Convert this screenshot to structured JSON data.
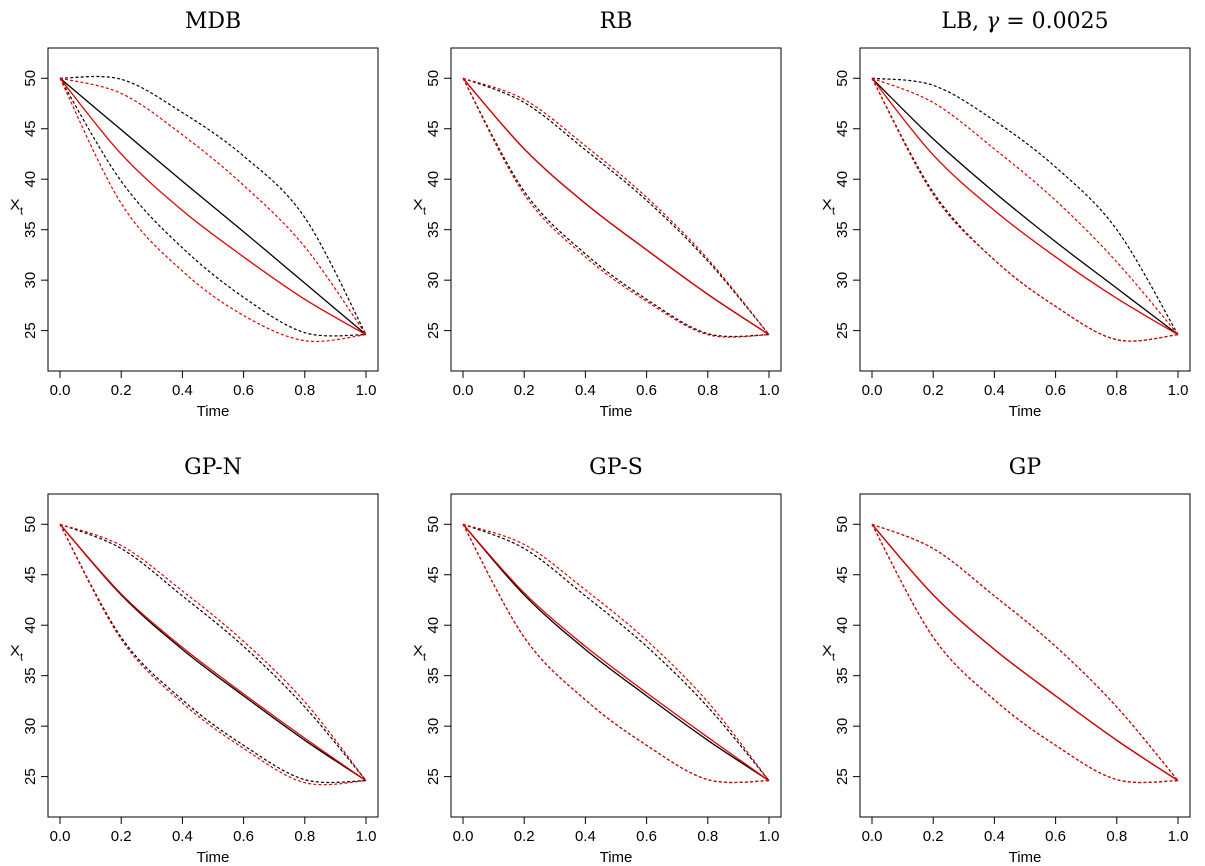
{
  "colors": {
    "reference": "#000000",
    "approximation": "#e00000"
  },
  "chart_data": [
    {
      "type": "line",
      "title": "MDB",
      "title_parts": [
        {
          "text": "MDB",
          "style": "normal"
        }
      ],
      "xlabel": "Time",
      "ylabel": "X",
      "ylabel_sub": "t",
      "xlim": [
        0,
        1
      ],
      "ylim": [
        21,
        53
      ],
      "xticks": [
        0.0,
        0.2,
        0.4,
        0.6,
        0.8,
        1.0
      ],
      "xtick_labels": [
        "0.0",
        "0.2",
        "0.4",
        "0.6",
        "0.8",
        "1.0"
      ],
      "yticks": [
        25,
        30,
        35,
        40,
        45,
        50
      ],
      "ytick_labels": [
        "25",
        "30",
        "35",
        "40",
        "45",
        "50"
      ],
      "x": [
        0.0,
        0.2,
        0.4,
        0.6,
        0.8,
        1.0
      ],
      "series": [
        {
          "color": "reference",
          "dash": "solid",
          "values": [
            50.0,
            44.9,
            39.8,
            34.8,
            29.7,
            24.6
          ]
        },
        {
          "color": "reference",
          "dash": "dotted",
          "values": [
            50.0,
            49.9,
            46.6,
            42.3,
            36.2,
            24.6
          ]
        },
        {
          "color": "reference",
          "dash": "dotted",
          "values": [
            50.0,
            39.8,
            33.2,
            28.3,
            24.8,
            24.6
          ]
        },
        {
          "color": "approximation",
          "dash": "solid",
          "values": [
            50.0,
            42.5,
            36.9,
            32.3,
            28.1,
            24.6
          ]
        },
        {
          "color": "approximation",
          "dash": "dotted",
          "values": [
            50.0,
            48.5,
            44.4,
            39.4,
            33.3,
            24.6
          ]
        },
        {
          "color": "approximation",
          "dash": "dotted",
          "values": [
            50.0,
            37.6,
            30.9,
            26.5,
            24.0,
            24.6
          ]
        }
      ]
    },
    {
      "type": "line",
      "title": "RB",
      "title_parts": [
        {
          "text": "RB",
          "style": "normal"
        }
      ],
      "xlabel": "Time",
      "ylabel": "X",
      "ylabel_sub": "t",
      "xlim": [
        0,
        1
      ],
      "ylim": [
        21,
        53
      ],
      "xticks": [
        0.0,
        0.2,
        0.4,
        0.6,
        0.8,
        1.0
      ],
      "xtick_labels": [
        "0.0",
        "0.2",
        "0.4",
        "0.6",
        "0.8",
        "1.0"
      ],
      "yticks": [
        25,
        30,
        35,
        40,
        45,
        50
      ],
      "ytick_labels": [
        "25",
        "30",
        "35",
        "40",
        "45",
        "50"
      ],
      "x": [
        0.0,
        0.2,
        0.4,
        0.6,
        0.8,
        1.0
      ],
      "series": [
        {
          "color": "reference",
          "dash": "solid",
          "values": [
            50.0,
            43.0,
            37.6,
            33.0,
            28.6,
            24.6
          ]
        },
        {
          "color": "reference",
          "dash": "dotted",
          "values": [
            50.0,
            47.6,
            42.9,
            37.9,
            31.9,
            24.6
          ]
        },
        {
          "color": "reference",
          "dash": "dotted",
          "values": [
            50.0,
            38.8,
            32.6,
            28.1,
            24.7,
            24.6
          ]
        },
        {
          "color": "approximation",
          "dash": "solid",
          "values": [
            50.0,
            43.0,
            37.6,
            33.0,
            28.6,
            24.6
          ]
        },
        {
          "color": "approximation",
          "dash": "dotted",
          "values": [
            50.0,
            47.9,
            43.3,
            38.2,
            32.1,
            24.6
          ]
        },
        {
          "color": "approximation",
          "dash": "dotted",
          "values": [
            50.0,
            38.5,
            32.3,
            27.9,
            24.6,
            24.6
          ]
        }
      ]
    },
    {
      "type": "line",
      "title": "LB, γ = 0.0025",
      "title_parts": [
        {
          "text": "LB, ",
          "style": "normal"
        },
        {
          "text": "γ",
          "style": "italic"
        },
        {
          "text": " = 0.0025",
          "style": "normal"
        }
      ],
      "xlabel": "Time",
      "ylabel": "X",
      "ylabel_sub": "t",
      "xlim": [
        0,
        1
      ],
      "ylim": [
        21,
        53
      ],
      "xticks": [
        0.0,
        0.2,
        0.4,
        0.6,
        0.8,
        1.0
      ],
      "xtick_labels": [
        "0.0",
        "0.2",
        "0.4",
        "0.6",
        "0.8",
        "1.0"
      ],
      "yticks": [
        25,
        30,
        35,
        40,
        45,
        50
      ],
      "ytick_labels": [
        "25",
        "30",
        "35",
        "40",
        "45",
        "50"
      ],
      "x": [
        0.0,
        0.2,
        0.4,
        0.6,
        0.8,
        1.0
      ],
      "series": [
        {
          "color": "reference",
          "dash": "solid",
          "values": [
            50.0,
            44.0,
            38.7,
            33.8,
            29.2,
            24.6
          ]
        },
        {
          "color": "reference",
          "dash": "dotted",
          "values": [
            50.0,
            49.3,
            45.8,
            41.2,
            35.0,
            24.6
          ]
        },
        {
          "color": "reference",
          "dash": "dotted",
          "values": [
            50.0,
            38.7,
            32.0,
            27.4,
            24.1,
            24.6
          ]
        },
        {
          "color": "approximation",
          "dash": "solid",
          "values": [
            50.0,
            42.4,
            36.9,
            32.3,
            28.2,
            24.6
          ]
        },
        {
          "color": "approximation",
          "dash": "dotted",
          "values": [
            50.0,
            47.6,
            43.0,
            37.9,
            31.8,
            24.6
          ]
        },
        {
          "color": "approximation",
          "dash": "dotted",
          "values": [
            50.0,
            38.5,
            32.0,
            27.4,
            24.1,
            24.6
          ]
        }
      ]
    },
    {
      "type": "line",
      "title": "GP-N",
      "title_parts": [
        {
          "text": "GP-N",
          "style": "normal"
        }
      ],
      "xlabel": "Time",
      "ylabel": "X",
      "ylabel_sub": "t",
      "xlim": [
        0,
        1
      ],
      "ylim": [
        21,
        53
      ],
      "xticks": [
        0.0,
        0.2,
        0.4,
        0.6,
        0.8,
        1.0
      ],
      "xtick_labels": [
        "0.0",
        "0.2",
        "0.4",
        "0.6",
        "0.8",
        "1.0"
      ],
      "yticks": [
        25,
        30,
        35,
        40,
        45,
        50
      ],
      "ytick_labels": [
        "25",
        "30",
        "35",
        "40",
        "45",
        "50"
      ],
      "x": [
        0.0,
        0.2,
        0.4,
        0.6,
        0.8,
        1.0
      ],
      "series": [
        {
          "color": "reference",
          "dash": "solid",
          "values": [
            50.0,
            43.0,
            37.6,
            33.0,
            28.6,
            24.6
          ]
        },
        {
          "color": "reference",
          "dash": "dotted",
          "values": [
            50.0,
            47.6,
            42.9,
            37.9,
            31.9,
            24.6
          ]
        },
        {
          "color": "reference",
          "dash": "dotted",
          "values": [
            50.0,
            38.8,
            32.6,
            28.1,
            24.7,
            24.6
          ]
        },
        {
          "color": "approximation",
          "dash": "solid",
          "values": [
            50.0,
            43.1,
            37.8,
            33.2,
            28.8,
            24.6
          ]
        },
        {
          "color": "approximation",
          "dash": "dotted",
          "values": [
            50.0,
            47.9,
            43.4,
            38.4,
            32.4,
            24.6
          ]
        },
        {
          "color": "approximation",
          "dash": "dotted",
          "values": [
            50.0,
            38.6,
            32.3,
            27.8,
            24.4,
            24.6
          ]
        }
      ]
    },
    {
      "type": "line",
      "title": "GP-S",
      "title_parts": [
        {
          "text": "GP-S",
          "style": "normal"
        }
      ],
      "xlabel": "Time",
      "ylabel": "X",
      "ylabel_sub": "t",
      "xlim": [
        0,
        1
      ],
      "ylim": [
        21,
        53
      ],
      "xticks": [
        0.0,
        0.2,
        0.4,
        0.6,
        0.8,
        1.0
      ],
      "xtick_labels": [
        "0.0",
        "0.2",
        "0.4",
        "0.6",
        "0.8",
        "1.0"
      ],
      "yticks": [
        25,
        30,
        35,
        40,
        45,
        50
      ],
      "ytick_labels": [
        "25",
        "30",
        "35",
        "40",
        "45",
        "50"
      ],
      "x": [
        0.0,
        0.2,
        0.4,
        0.6,
        0.8,
        1.0
      ],
      "series": [
        {
          "color": "reference",
          "dash": "solid",
          "values": [
            50.0,
            43.0,
            37.6,
            33.0,
            28.6,
            24.6
          ]
        },
        {
          "color": "reference",
          "dash": "dotted",
          "values": [
            50.0,
            47.6,
            42.9,
            37.9,
            31.9,
            24.6
          ]
        },
        {
          "color": "reference",
          "dash": "dotted",
          "values": [
            50.0,
            38.8,
            32.6,
            28.1,
            24.7,
            24.6
          ]
        },
        {
          "color": "approximation",
          "dash": "solid",
          "values": [
            50.0,
            43.2,
            37.9,
            33.3,
            28.9,
            24.6
          ]
        },
        {
          "color": "approximation",
          "dash": "dotted",
          "values": [
            50.0,
            48.0,
            43.5,
            38.5,
            32.4,
            24.6
          ]
        },
        {
          "color": "approximation",
          "dash": "dotted",
          "values": [
            50.0,
            38.8,
            32.6,
            28.1,
            24.7,
            24.6
          ]
        }
      ]
    },
    {
      "type": "line",
      "title": "GP",
      "title_parts": [
        {
          "text": "GP",
          "style": "normal"
        }
      ],
      "xlabel": "Time",
      "ylabel": "X",
      "ylabel_sub": "t",
      "xlim": [
        0,
        1
      ],
      "ylim": [
        21,
        53
      ],
      "xticks": [
        0.0,
        0.2,
        0.4,
        0.6,
        0.8,
        1.0
      ],
      "xtick_labels": [
        "0.0",
        "0.2",
        "0.4",
        "0.6",
        "0.8",
        "1.0"
      ],
      "yticks": [
        25,
        30,
        35,
        40,
        45,
        50
      ],
      "ytick_labels": [
        "25",
        "30",
        "35",
        "40",
        "45",
        "50"
      ],
      "x": [
        0.0,
        0.2,
        0.4,
        0.6,
        0.8,
        1.0
      ],
      "series": [
        {
          "color": "reference",
          "dash": "solid",
          "values": [
            50.0,
            43.0,
            37.6,
            33.0,
            28.6,
            24.6
          ]
        },
        {
          "color": "reference",
          "dash": "dotted",
          "values": [
            50.0,
            47.6,
            42.9,
            37.9,
            31.9,
            24.6
          ]
        },
        {
          "color": "reference",
          "dash": "dotted",
          "values": [
            50.0,
            38.8,
            32.6,
            28.1,
            24.7,
            24.6
          ]
        },
        {
          "color": "approximation",
          "dash": "solid",
          "values": [
            50.0,
            43.0,
            37.6,
            33.0,
            28.6,
            24.6
          ]
        },
        {
          "color": "approximation",
          "dash": "dotted",
          "values": [
            50.0,
            47.6,
            42.9,
            37.9,
            31.9,
            24.6
          ]
        },
        {
          "color": "approximation",
          "dash": "dotted",
          "values": [
            50.0,
            38.8,
            32.6,
            28.1,
            24.7,
            24.6
          ]
        }
      ]
    }
  ]
}
